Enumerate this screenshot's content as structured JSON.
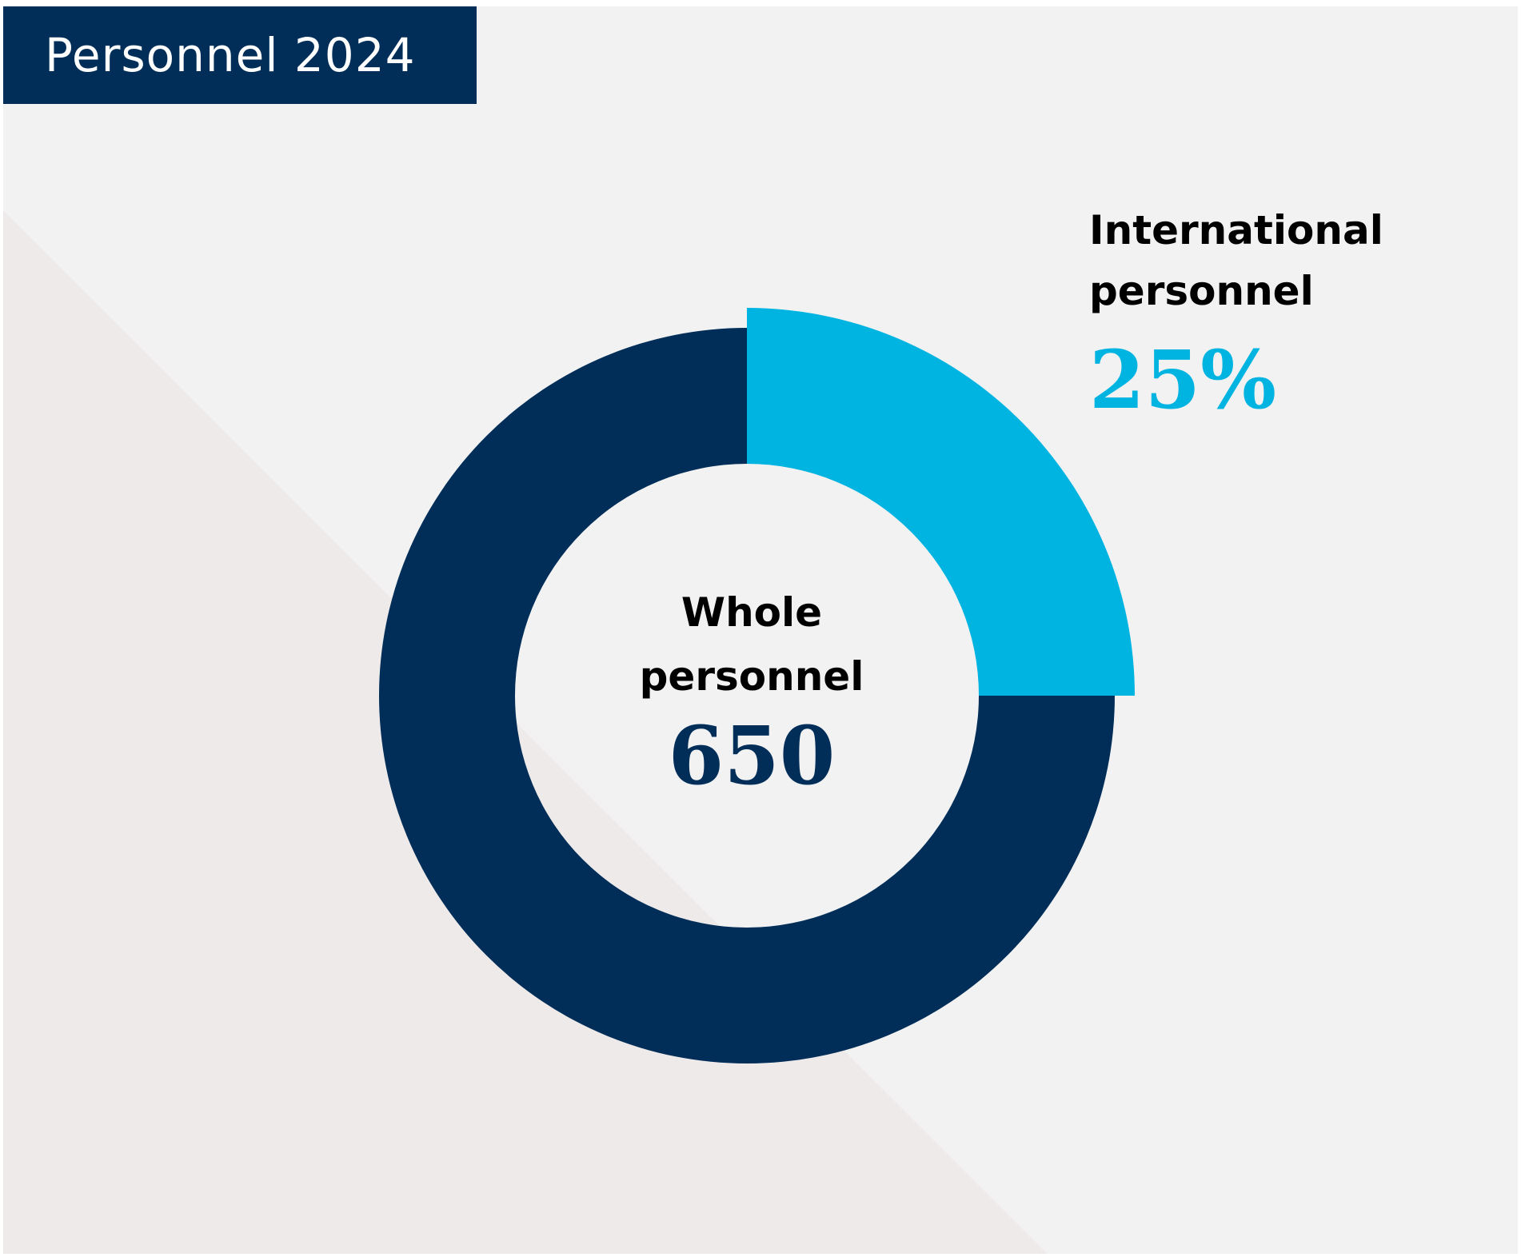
{
  "title": "Personnel 2024",
  "colors": {
    "panel_bg": "#f2f2f3",
    "diagonal_shape": "#eeeae9",
    "title_bar": "#002e58",
    "whole": "#002e58",
    "international": "#00b4e1"
  },
  "center": {
    "label_line1": "Whole",
    "label_line2": "personnel",
    "value": "650"
  },
  "side": {
    "label_line1": "International",
    "label_line2": "personnel",
    "value": "25%"
  },
  "chart_data": {
    "type": "pie",
    "variant": "donut",
    "title": "Personnel 2024",
    "total": 650,
    "slices": [
      {
        "label": "International personnel",
        "value": 25,
        "unit": "%",
        "color": "#00b4e1",
        "exploded": true
      },
      {
        "label": "",
        "value": 75,
        "unit": "%",
        "color": "#002e58"
      }
    ]
  }
}
